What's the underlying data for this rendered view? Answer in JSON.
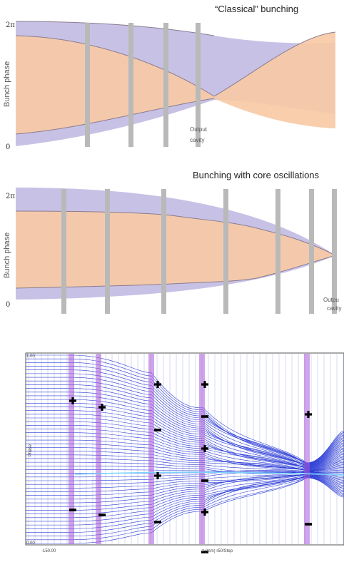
{
  "panel1": {
    "title": "“Classical” bunching",
    "ylabel": "Bunch phase",
    "y_top_tick": "2π",
    "y_bottom_tick": "0",
    "annotation_line1": "Output",
    "annotation_line2": "cavity",
    "colors": {
      "outer": "#c8c1e6",
      "core": "#f7caa6",
      "cavity": "#b9b9b9"
    }
  },
  "panel2": {
    "title": "Bunching with core oscillations",
    "ylabel": "Bunch phase",
    "y_top_tick": "2π",
    "y_bottom_tick": "0",
    "annotation_line1": "Outpu",
    "annotation_line2": "cavity"
  },
  "panel3": {
    "y_top_tick": "1.00",
    "y_bottom_tick": "0.00",
    "ylabel": "Phase",
    "x_left_tick": "-150.00",
    "xlabel": "z (mm)  r50/Step",
    "colors": {
      "lines": "#2b3bd6",
      "cavity": "#a75ad8"
    }
  }
}
